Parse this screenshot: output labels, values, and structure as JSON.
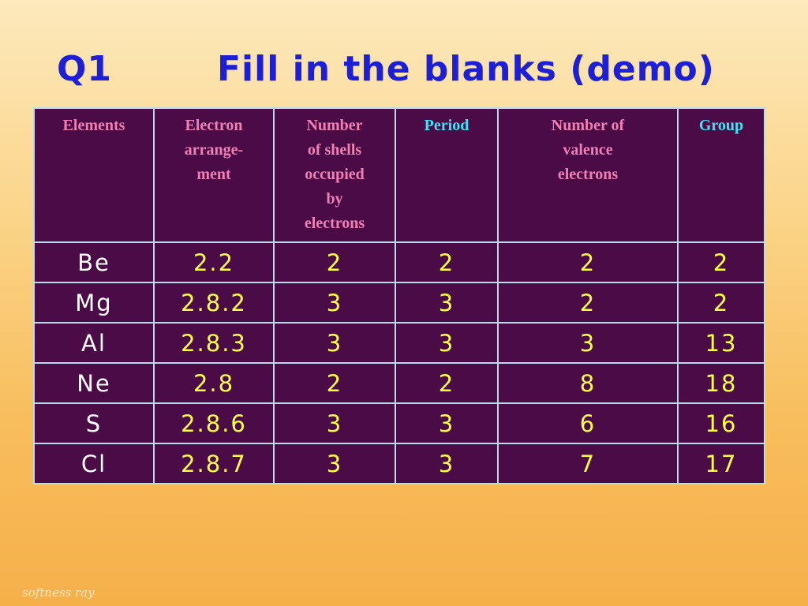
{
  "header": {
    "number": "Q1",
    "title": "Fill in the blanks (demo)"
  },
  "table": {
    "columns": [
      "Elements",
      "Electron\narrange-\nment",
      "Number\nof shells\noccupied\nby\nelectrons",
      "Period",
      "Number of\nvalence\nelectrons",
      "Group"
    ],
    "rows": [
      [
        "Be",
        "2.2",
        2,
        2,
        2,
        2
      ],
      [
        "Mg",
        "2.8.2",
        3,
        3,
        2,
        2
      ],
      [
        "Al",
        "2.8.3",
        3,
        3,
        3,
        13
      ],
      [
        "Ne",
        "2.8",
        2,
        2,
        8,
        18
      ],
      [
        "S",
        "2.8.6",
        3,
        3,
        6,
        16
      ],
      [
        "Cl",
        "2.8.7",
        3,
        3,
        7,
        17
      ]
    ]
  },
  "footer": {
    "watermark": "softness ray"
  }
}
